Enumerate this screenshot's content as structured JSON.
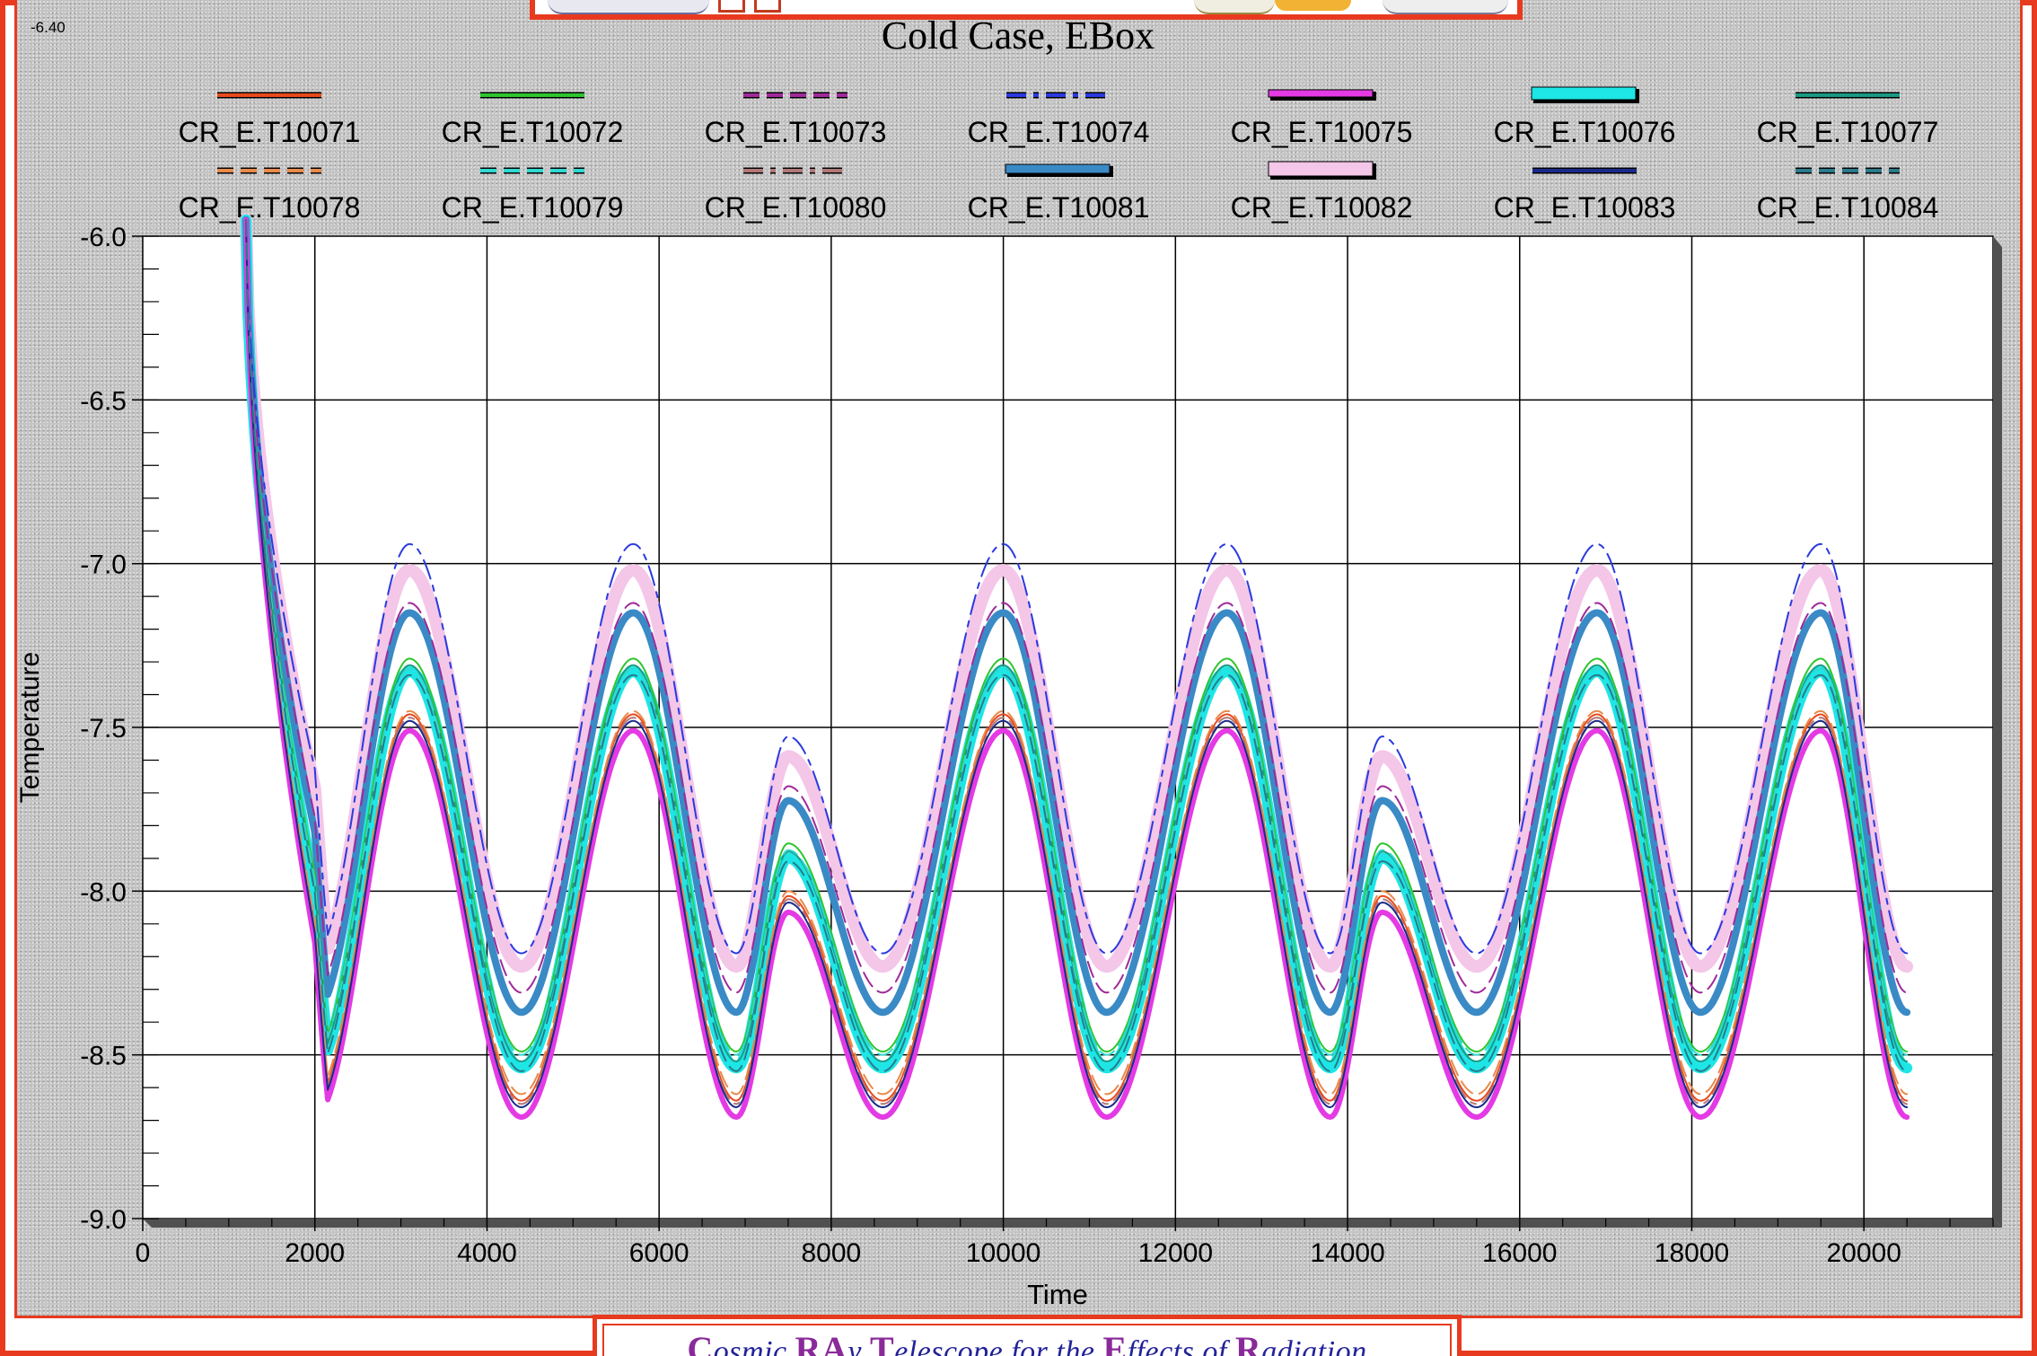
{
  "corner_label": "-6.40",
  "footer": {
    "words": [
      {
        "cap": "C",
        "rest": "osmic "
      },
      {
        "cap": "RA",
        "rest": "y "
      },
      {
        "cap": "T",
        "rest": "elescope for the "
      },
      {
        "cap": "E",
        "rest": "ffects of "
      },
      {
        "cap": "R",
        "rest": "adiation"
      }
    ]
  },
  "chart_data": {
    "type": "line",
    "title": "Cold Case, EBox",
    "xlabel": "Time",
    "ylabel": "Temperature",
    "xlim": [
      0,
      21500
    ],
    "ylim": [
      -9.0,
      -6.0
    ],
    "xticks": [
      0,
      2000,
      4000,
      6000,
      8000,
      10000,
      12000,
      14000,
      16000,
      18000,
      20000
    ],
    "yticks": [
      -6.0,
      -6.5,
      -7.0,
      -7.5,
      -8.0,
      -8.5,
      -9.0
    ],
    "ytick_labels": [
      "-6.0",
      "-6.5",
      "-7.0",
      "-7.5",
      "-8.0",
      "-8.5",
      "-9.0"
    ],
    "grid": true,
    "legend_position": "top",
    "shape": {
      "start_time": 1200,
      "end_time": 20500,
      "start_value": -5.95,
      "knots": [
        [
          1200,
          0.0
        ],
        [
          2000,
          0.0
        ],
        [
          3100,
          1.0
        ],
        [
          4400,
          0.0
        ],
        [
          5700,
          1.0
        ],
        [
          6900,
          0.0
        ],
        [
          7500,
          0.53
        ],
        [
          8600,
          0.0
        ],
        [
          10000,
          1.0
        ],
        [
          11200,
          0.0
        ],
        [
          12600,
          1.0
        ],
        [
          13800,
          0.0
        ],
        [
          14400,
          0.53
        ],
        [
          15500,
          0.0
        ],
        [
          16900,
          1.0
        ],
        [
          18100,
          0.0
        ],
        [
          19500,
          1.0
        ],
        [
          20500,
          0.0
        ]
      ]
    },
    "series": [
      {
        "name": "CR_E.T10071",
        "color": "#e84a1c",
        "width": 2,
        "dash": "solid",
        "low": -8.64,
        "high": -7.46
      },
      {
        "name": "CR_E.T10072",
        "color": "#2ec62e",
        "width": 2,
        "dash": "solid",
        "low": -8.49,
        "high": -7.29
      },
      {
        "name": "CR_E.T10073",
        "color": "#a02a9a",
        "width": 2,
        "dash": "dashed",
        "low": -8.31,
        "high": -7.12
      },
      {
        "name": "CR_E.T10074",
        "color": "#2a3ae0",
        "width": 2,
        "dash": "dashdot",
        "low": -8.19,
        "high": -6.94
      },
      {
        "name": "CR_E.T10075",
        "color": "#e43ae4",
        "width": 6,
        "dash": "solid",
        "low": -8.69,
        "high": -7.51
      },
      {
        "name": "CR_E.T10076",
        "color": "#1ee6e6",
        "width": 12,
        "dash": "solid",
        "low": -8.54,
        "high": -7.33
      },
      {
        "name": "CR_E.T10077",
        "color": "#1a9a82",
        "width": 2,
        "dash": "solid",
        "low": -8.52,
        "high": -7.31
      },
      {
        "name": "CR_E.T10078",
        "color": "#e88a4a",
        "width": 2,
        "dash": "dashed",
        "low": -8.62,
        "high": -7.45
      },
      {
        "name": "CR_E.T10079",
        "color": "#30d8d0",
        "width": 2,
        "dash": "dashed",
        "low": -8.5,
        "high": -7.32
      },
      {
        "name": "CR_E.T10080",
        "color": "#b07878",
        "width": 2,
        "dash": "dashdot",
        "low": -8.65,
        "high": -7.47
      },
      {
        "name": "CR_E.T10081",
        "color": "#3a8ac6",
        "width": 8,
        "dash": "solid",
        "low": -8.37,
        "high": -7.15
      },
      {
        "name": "CR_E.T10082",
        "color": "#f4c6e8",
        "width": 14,
        "dash": "solid",
        "low": -8.23,
        "high": -7.02
      },
      {
        "name": "CR_E.T10083",
        "color": "#1a2a8a",
        "width": 2,
        "dash": "solid",
        "low": -8.66,
        "high": -7.48
      },
      {
        "name": "CR_E.T10084",
        "color": "#2a7a8a",
        "width": 2,
        "dash": "dashed",
        "low": -8.55,
        "high": -7.34
      }
    ]
  }
}
